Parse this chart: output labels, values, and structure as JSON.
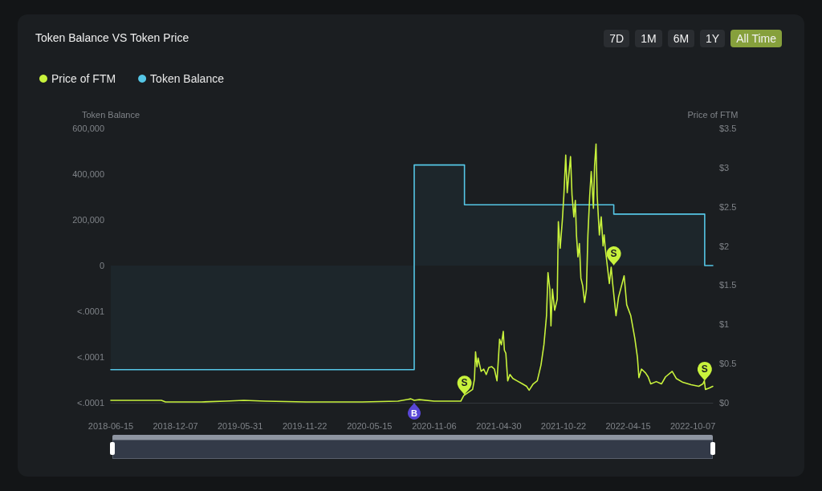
{
  "chart_data": {
    "type": "line",
    "title": "Token Balance VS Token Price",
    "ylabel": "Token Balance",
    "y2label": "Price of FTM",
    "legend": "top left",
    "grid": false,
    "marker": "none",
    "xlim": [
      "2018-06-15",
      "2022-11-30"
    ],
    "xticks": [
      "2018-06-15",
      "2018-12-07",
      "2019-05-31",
      "2019-11-22",
      "2020-05-15",
      "2020-11-06",
      "2021-04-30",
      "2021-10-22",
      "2022-04-15",
      "2022-10-07"
    ],
    "ylim": [
      -600000,
      600000
    ],
    "yticks": [
      {
        "value": -600000,
        "label": "<.0001"
      },
      {
        "value": -400000,
        "label": "<.0001"
      },
      {
        "value": -200000,
        "label": "<.0001"
      },
      0,
      {
        "value": 200000,
        "label": "200,000"
      },
      {
        "value": 400000,
        "label": "400,000"
      },
      {
        "value": 600000,
        "label": "600,000"
      }
    ],
    "y2lim": [
      0,
      3.5
    ],
    "y2ticks": [
      {
        "value": 0,
        "label": "$0"
      },
      {
        "value": 0.5,
        "label": "$0.5"
      },
      {
        "value": 1,
        "label": "$1"
      },
      {
        "value": 1.5,
        "label": "$1.5"
      },
      {
        "value": 2,
        "label": "$2"
      },
      {
        "value": 2.5,
        "label": "$2.5"
      },
      {
        "value": 3,
        "label": "$3"
      },
      {
        "value": 3.5,
        "label": "$3.5"
      }
    ],
    "annotations": [
      "7D",
      "1M",
      "6M",
      "1Y",
      "All Time",
      {
        "text": "B",
        "x": "2020-09-13",
        "y": -600000
      },
      {
        "text": "S",
        "x": "2021-01-27",
        "y": -566000
      },
      {
        "text": "S",
        "x": "2022-03-07",
        "y": 0
      },
      {
        "text": "S",
        "x": "2022-11-08",
        "y": -505000
      }
    ],
    "series": [
      {
        "name": "Price of FTM",
        "color": "#c8f23c",
        "axis": "y2",
        "x": [
          "2018-06-15",
          "2018-10-30",
          "2018-11-10",
          "2019-02-15",
          "2019-04-21",
          "2019-06-10",
          "2019-08-08",
          "2019-11-25",
          "2020-04-25",
          "2020-07-31",
          "2020-09-04",
          "2020-09-13",
          "2020-09-27",
          "2020-11-06",
          "2021-01-17",
          "2021-01-25",
          "2021-02-18",
          "2021-02-23",
          "2021-02-26",
          "2021-03-02",
          "2021-03-05",
          "2021-03-13",
          "2021-03-20",
          "2021-03-27",
          "2021-04-03",
          "2021-04-11",
          "2021-04-18",
          "2021-04-25",
          "2021-04-29",
          "2021-05-02",
          "2021-05-07",
          "2021-05-12",
          "2021-05-15",
          "2021-05-19",
          "2021-05-24",
          "2021-05-30",
          "2021-06-07",
          "2021-06-18",
          "2021-07-03",
          "2021-07-14",
          "2021-07-21",
          "2021-08-01",
          "2021-08-12",
          "2021-08-22",
          "2021-08-30",
          "2021-09-06",
          "2021-09-10",
          "2021-09-15",
          "2021-09-18",
          "2021-09-22",
          "2021-09-28",
          "2021-10-05",
          "2021-10-08",
          "2021-10-13",
          "2021-10-19",
          "2021-10-23",
          "2021-10-28",
          "2021-11-01",
          "2021-11-05",
          "2021-11-10",
          "2021-11-14",
          "2021-11-19",
          "2021-11-23",
          "2021-11-26",
          "2021-11-30",
          "2021-12-04",
          "2021-12-08",
          "2021-12-13",
          "2021-12-18",
          "2021-12-23",
          "2021-12-27",
          "2022-01-01",
          "2022-01-05",
          "2022-01-11",
          "2022-01-14",
          "2022-01-18",
          "2022-01-21",
          "2022-01-27",
          "2022-02-01",
          "2022-02-06",
          "2022-02-09",
          "2022-02-12",
          "2022-02-23",
          "2022-02-28",
          "2022-03-04",
          "2022-03-13",
          "2022-03-20",
          "2022-04-04",
          "2022-04-11",
          "2022-04-22",
          "2022-05-03",
          "2022-05-10",
          "2022-05-14",
          "2022-05-21",
          "2022-06-01",
          "2022-06-08",
          "2022-06-15",
          "2022-06-30",
          "2022-07-14",
          "2022-07-25",
          "2022-08-12",
          "2022-08-23",
          "2022-09-10",
          "2022-10-02",
          "2022-10-23",
          "2022-11-03",
          "2022-11-07",
          "2022-11-10",
          "2022-11-21",
          "2022-11-30"
        ],
        "values": [
          0.03,
          0.03,
          0.01,
          0.01,
          0.02,
          0.03,
          0.02,
          0.01,
          0.01,
          0.02,
          0.05,
          0.03,
          0.04,
          0.02,
          0.02,
          0.09,
          0.17,
          0.3,
          0.65,
          0.46,
          0.57,
          0.4,
          0.43,
          0.36,
          0.45,
          0.46,
          0.43,
          0.28,
          0.57,
          0.81,
          0.74,
          0.91,
          0.67,
          0.63,
          0.28,
          0.36,
          0.31,
          0.28,
          0.24,
          0.21,
          0.16,
          0.24,
          0.28,
          0.48,
          0.74,
          1.11,
          1.66,
          1.45,
          0.98,
          1.45,
          1.18,
          1.32,
          2.31,
          1.97,
          2.34,
          2.65,
          3.16,
          2.68,
          2.89,
          3.14,
          2.65,
          2.37,
          2.58,
          2.14,
          1.86,
          2.03,
          1.59,
          1.49,
          1.28,
          1.45,
          2.14,
          2.65,
          2.95,
          2.48,
          3.02,
          3.3,
          2.65,
          2.14,
          2.37,
          2.0,
          2.14,
          1.97,
          1.52,
          1.73,
          1.52,
          1.11,
          1.35,
          1.62,
          1.25,
          1.11,
          0.82,
          0.58,
          0.32,
          0.43,
          0.38,
          0.33,
          0.24,
          0.27,
          0.24,
          0.33,
          0.4,
          0.31,
          0.26,
          0.23,
          0.21,
          0.24,
          0.28,
          0.17,
          0.19,
          0.21
        ]
      },
      {
        "name": "Token Balance",
        "type": "step",
        "color": "#55c6e6",
        "x": [
          "2018-06-15",
          "2020-09-13",
          "2021-01-27",
          "2022-03-07",
          "2022-11-08",
          "2022-11-30"
        ],
        "values": [
          -455000,
          440000,
          266000,
          225000,
          0,
          0
        ]
      }
    ]
  }
}
